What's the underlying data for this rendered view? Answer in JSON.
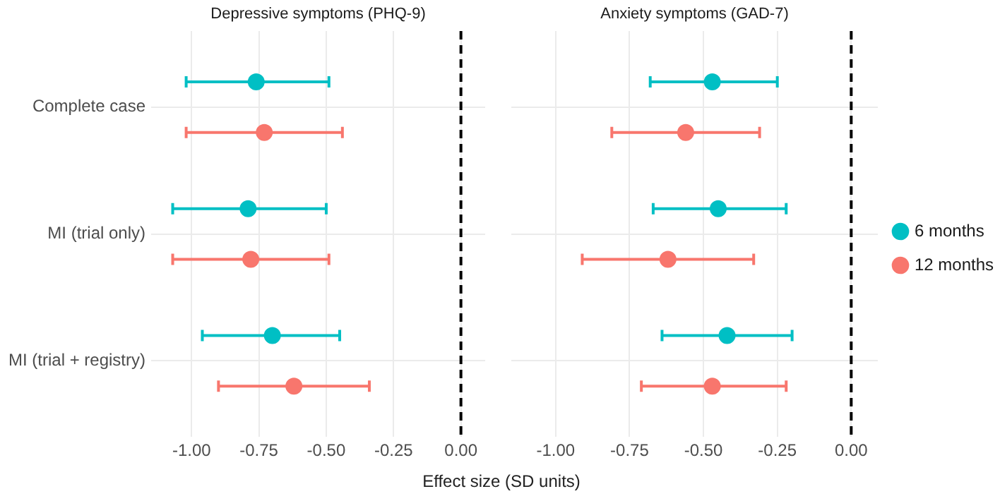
{
  "chart_data": [
    {
      "type": "scatter",
      "title": "Depressive symptoms (PHQ-9)",
      "xlabel": "Effect size (SD units)",
      "orientation": "horizontal",
      "categories": [
        "Complete case",
        "MI (trial only)",
        "MI (trial + registry)"
      ],
      "series": [
        {
          "color": "#00bfc4",
          "values": [
            -0.76,
            -0.79,
            -0.7
          ],
          "errors": [
            [
              -1.02,
              -0.49
            ],
            [
              -1.07,
              -0.5
            ],
            [
              -0.96,
              -0.45
            ]
          ]
        },
        {
          "color": "#f8766d",
          "values": [
            -0.73,
            -0.78,
            -0.62
          ],
          "errors": [
            [
              -1.02,
              -0.44
            ],
            [
              -1.07,
              -0.49
            ],
            [
              -0.9,
              -0.34
            ]
          ]
        }
      ],
      "xlim": [
        -1.15,
        0.09
      ],
      "xticks": [
        {
          "value": -1,
          "label": "-1.00"
        },
        {
          "value": -0.75,
          "label": "-0.75"
        },
        {
          "value": -0.5,
          "label": "-0.50"
        },
        {
          "value": -0.25,
          "label": "-0.25"
        },
        {
          "value": 0,
          "label": "0.00"
        }
      ],
      "ref_lines": [
        {
          "axis": "x",
          "value": 0,
          "color": "#000000",
          "line_style": "dashed"
        }
      ],
      "grid": true,
      "marker": "circle",
      "legend": false
    },
    {
      "type": "scatter",
      "title": "Anxiety symptoms (GAD-7)",
      "orientation": "horizontal",
      "series": [
        {
          "name": "6 months",
          "color": "#00bfc4",
          "values": [
            -0.47,
            -0.45,
            -0.42
          ],
          "errors": [
            [
              -0.68,
              -0.25
            ],
            [
              -0.67,
              -0.22
            ],
            [
              -0.64,
              -0.2
            ]
          ]
        },
        {
          "name": "12 months",
          "color": "#f8766d",
          "values": [
            -0.56,
            -0.62,
            -0.47
          ],
          "errors": [
            [
              -0.81,
              -0.31
            ],
            [
              -0.91,
              -0.33
            ],
            [
              -0.71,
              -0.22
            ]
          ]
        }
      ],
      "xlim": [
        -1.15,
        0.09
      ],
      "xticks": [
        {
          "value": -1,
          "label": "-1.00"
        },
        {
          "value": -0.75,
          "label": "-0.75"
        },
        {
          "value": -0.5,
          "label": "-0.50"
        },
        {
          "value": -0.25,
          "label": "-0.25"
        },
        {
          "value": 0,
          "label": "0.00"
        }
      ],
      "ref_lines": [
        {
          "axis": "x",
          "value": 0,
          "color": "#000000",
          "line_style": "dashed"
        }
      ],
      "grid": true,
      "marker": "circle",
      "legend": "right",
      "tick_labels": "x"
    }
  ]
}
